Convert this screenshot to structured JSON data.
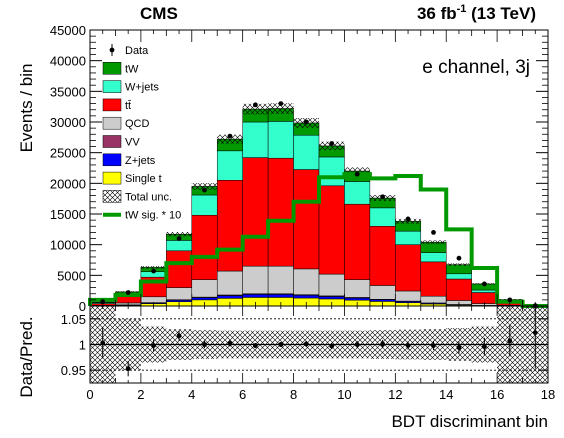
{
  "header": {
    "left": "CMS",
    "right_prefix": "36 fb",
    "right_sup": "-1",
    "right_suffix": " (13 TeV)"
  },
  "annotation": "e channel, 3j",
  "chart_data": [
    {
      "type": "bar",
      "stacked": true,
      "xlabel": "BDT discriminant bin",
      "ylabel": "Events / bin",
      "xlim": [
        0,
        18
      ],
      "ylim": [
        0,
        45000
      ],
      "x_ticks": [
        "0",
        "2",
        "4",
        "6",
        "8",
        "10",
        "12",
        "14",
        "16",
        "18"
      ],
      "y_ticks": [
        "0",
        "5000",
        "10000",
        "15000",
        "20000",
        "25000",
        "30000",
        "35000",
        "40000",
        "45000"
      ],
      "bin_edges": [
        0,
        1,
        2,
        3,
        4,
        5,
        6,
        7,
        8,
        9,
        10,
        11,
        12,
        13,
        14,
        15,
        16,
        17,
        18
      ],
      "legend_position": "top-left",
      "stack_order_bottom_to_top": [
        "Single t",
        "Z+jets",
        "VV",
        "QCD",
        "tt̄",
        "W+jets",
        "tW"
      ],
      "series": [
        {
          "name": "Single t",
          "color": "#ffff00",
          "values": [
            30,
            120,
            380,
            700,
            1000,
            1250,
            1400,
            1400,
            1300,
            1150,
            950,
            750,
            550,
            330,
            160,
            60,
            15,
            0
          ]
        },
        {
          "name": "Z+jets",
          "color": "#0000ff",
          "values": [
            5,
            40,
            120,
            250,
            350,
            450,
            500,
            500,
            450,
            400,
            350,
            300,
            200,
            130,
            60,
            25,
            5,
            0
          ]
        },
        {
          "name": "VV",
          "color": "#993366",
          "values": [
            5,
            30,
            50,
            80,
            100,
            100,
            100,
            100,
            100,
            100,
            100,
            50,
            50,
            40,
            30,
            15,
            5,
            0
          ]
        },
        {
          "name": "QCD",
          "color": "#cccccc",
          "values": [
            60,
            310,
            950,
            1970,
            2850,
            3900,
            4500,
            4500,
            4200,
            3550,
            2900,
            2250,
            1650,
            1100,
            650,
            300,
            100,
            0
          ]
        },
        {
          "name": "tt̄",
          "color": "#ff0000",
          "values": [
            300,
            1200,
            3200,
            6000,
            10500,
            14800,
            17700,
            17600,
            16200,
            14400,
            12300,
            9650,
            7550,
            5600,
            3500,
            1800,
            500,
            0
          ]
        },
        {
          "name": "W+jets",
          "color": "#33ffcc",
          "values": [
            150,
            300,
            900,
            1700,
            3300,
            4800,
            5800,
            6000,
            5600,
            4700,
            3700,
            3000,
            2200,
            1500,
            850,
            400,
            120,
            0
          ]
        },
        {
          "name": "tW",
          "color": "#009900",
          "values": [
            100,
            300,
            700,
            1000,
            1400,
            1900,
            2100,
            2100,
            2000,
            1800,
            1700,
            1600,
            1600,
            1700,
            1500,
            1000,
            300,
            0
          ]
        }
      ],
      "overlay_series": [
        {
          "name": "tW sig. * 10",
          "color": "#009900",
          "values": [
            1000,
            1800,
            4000,
            7000,
            8000,
            9200,
            11300,
            13900,
            17000,
            21000,
            21500,
            20800,
            21200,
            19000,
            12500,
            6200,
            700,
            0
          ]
        }
      ],
      "data_series": {
        "name": "Data",
        "values": [
          700,
          2200,
          5700,
          11000,
          18900,
          27700,
          32800,
          33000,
          30000,
          26500,
          21500,
          17800,
          14200,
          12000,
          7800,
          3600,
          1000,
          50
        ],
        "errors": [
          30,
          47,
          75,
          105,
          138,
          166,
          181,
          182,
          173,
          163,
          147,
          133,
          119,
          110,
          88,
          60,
          32,
          7
        ]
      },
      "uncertainty": {
        "name": "Total unc."
      },
      "legend": [
        "Data",
        "tW",
        "W+jets",
        "tt̄",
        "QCD",
        "VV",
        "Z+jets",
        "Single t",
        "Total unc.",
        "tW sig. * 10"
      ]
    },
    {
      "type": "scatter",
      "xlabel": "BDT discriminant bin",
      "ylabel": "Data/Pred.",
      "xlim": [
        0,
        18
      ],
      "ylim": [
        0.925,
        1.075
      ],
      "y_ticks": [
        "0.95",
        "1",
        "1.05"
      ],
      "x": [
        0.5,
        1.5,
        2.5,
        3.5,
        4.5,
        5.5,
        6.5,
        7.5,
        8.5,
        9.5,
        10.5,
        11.5,
        12.5,
        13.5,
        14.5,
        15.5,
        16.5,
        17.5
      ],
      "values": [
        1.003,
        0.953,
        0.998,
        1.017,
        1.0,
        1.002,
        0.998,
        1.0,
        1.001,
        0.997,
        1.0,
        1.001,
        0.998,
        0.998,
        0.994,
        0.996,
        1.007,
        1.023
      ],
      "errors": [
        0.03,
        0.015,
        0.012,
        0.01,
        0.007,
        0.006,
        0.005,
        0.005,
        0.006,
        0.006,
        0.007,
        0.008,
        0.008,
        0.009,
        0.012,
        0.017,
        0.03,
        0.07
      ],
      "band": [
        0.09,
        0.05,
        0.035,
        0.03,
        0.028,
        0.027,
        0.027,
        0.027,
        0.027,
        0.027,
        0.027,
        0.028,
        0.029,
        0.03,
        0.032,
        0.035,
        0.09,
        0.2
      ],
      "reference_lines": [
        0.95,
        1.0,
        1.05
      ]
    }
  ]
}
